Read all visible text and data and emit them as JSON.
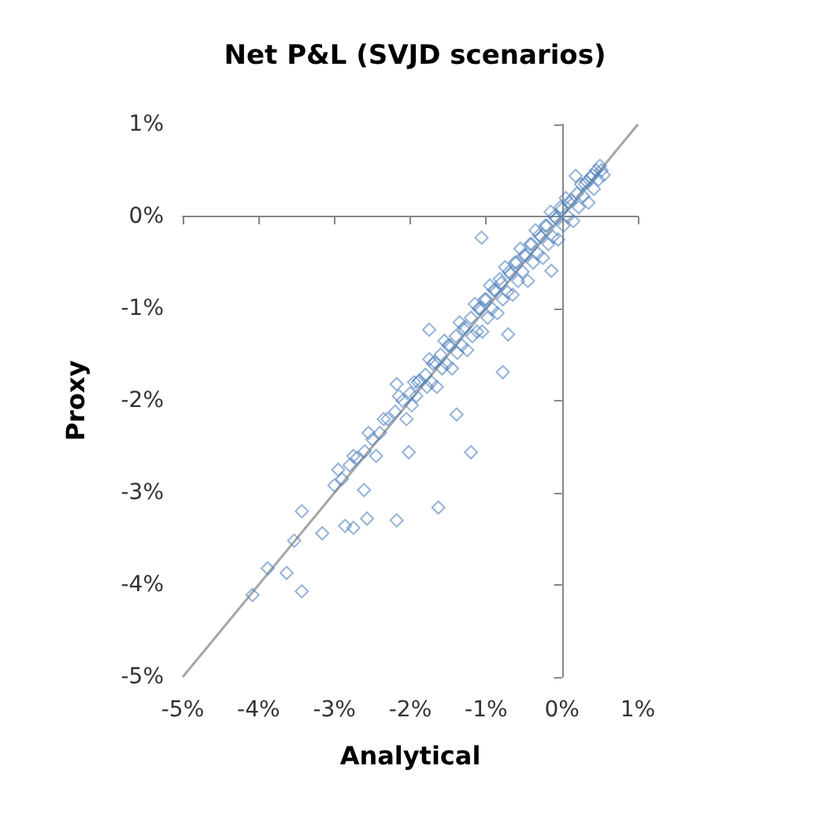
{
  "chart_data": {
    "type": "scatter",
    "title": "Net P&L (SVJD scenarios)",
    "xlabel": "Analytical",
    "ylabel": "Proxy",
    "xlim": [
      -5,
      1
    ],
    "ylim": [
      -5,
      1
    ],
    "xticks": [
      {
        "value": -5,
        "label": "-5%"
      },
      {
        "value": -4,
        "label": "-4%"
      },
      {
        "value": -3,
        "label": "-3%"
      },
      {
        "value": -2,
        "label": "-2%"
      },
      {
        "value": -1,
        "label": "-1%"
      },
      {
        "value": 0,
        "label": "0%"
      },
      {
        "value": 1,
        "label": "1%"
      }
    ],
    "yticks": [
      {
        "value": -5,
        "label": "-5%"
      },
      {
        "value": -4,
        "label": "-4%"
      },
      {
        "value": -3,
        "label": "-3%"
      },
      {
        "value": -2,
        "label": "-2%"
      },
      {
        "value": -1,
        "label": "-1%"
      },
      {
        "value": 0,
        "label": "0%"
      },
      {
        "value": 1,
        "label": "1%"
      }
    ],
    "marker": "diamond",
    "series": [
      {
        "color": "#4f81bd",
        "x": [
          -1.98,
          -1.88,
          -1.78,
          -1.68,
          -1.58,
          -1.48,
          -1.38,
          -1.28,
          -1.18,
          -1.08,
          -0.98,
          -0.88,
          -0.78,
          -0.68,
          -0.58,
          -0.48,
          -0.38,
          -0.28,
          -0.18,
          -0.08,
          0.02,
          0.12,
          0.22,
          0.32,
          0.42,
          0.52,
          -1.92,
          -1.72,
          -1.52,
          -1.32,
          -1.12,
          -0.92,
          -0.72,
          -0.52,
          -0.32,
          -0.12,
          0.08,
          0.28,
          0.48,
          -1.02,
          -0.82,
          -0.62,
          -0.42,
          -0.22,
          -0.02,
          0.38,
          -4.08,
          -3.43,
          -3.63,
          -3.88,
          -3.53,
          -3.16,
          -3.43,
          -2.86,
          -2.57,
          -2.18,
          -1.63,
          -2.75,
          -2.61,
          -1.2,
          -0.78,
          -1.39,
          -2.02,
          -2.18,
          -1.06,
          0.18,
          -1.75,
          -0.71,
          -0.14,
          -3.0,
          -2.9,
          -2.8,
          -2.7,
          -2.6,
          -2.5,
          -2.4,
          -2.3,
          -2.2,
          -2.1,
          -2.0,
          -1.9,
          -1.8,
          -1.7,
          -1.6,
          -1.5,
          -1.4,
          -1.3,
          -1.2,
          -1.1,
          -1.0,
          -0.9,
          -0.8,
          -0.7,
          -0.6,
          -0.5,
          -0.4,
          -0.3,
          -0.2,
          -0.1,
          0.0,
          0.1,
          0.2,
          0.3,
          0.4,
          0.5,
          -2.95,
          -2.75,
          -2.55,
          -2.35,
          -2.15,
          -1.95,
          -1.75,
          -1.55,
          -1.35,
          -1.15,
          -0.95,
          -0.75,
          -0.55,
          -0.35,
          -0.15,
          0.05,
          0.25,
          0.45,
          -2.45,
          -2.05,
          -1.65,
          -1.45,
          -1.25,
          -1.05,
          -0.85,
          -0.65,
          -0.45,
          -0.25,
          -0.05,
          0.15,
          0.35,
          0.55
        ],
        "values": [
          -2.05,
          -1.78,
          -1.85,
          -1.58,
          -1.65,
          -1.4,
          -1.48,
          -1.2,
          -1.3,
          -1.0,
          -1.1,
          -0.8,
          -0.9,
          -0.62,
          -0.7,
          -0.42,
          -0.5,
          -0.22,
          -0.3,
          -0.02,
          -0.1,
          0.18,
          0.1,
          0.38,
          0.3,
          0.5,
          -1.95,
          -1.8,
          -1.6,
          -1.4,
          -1.25,
          -1.0,
          -0.82,
          -0.6,
          -0.4,
          -0.22,
          0.0,
          0.22,
          0.4,
          -0.9,
          -0.68,
          -0.5,
          -0.3,
          -0.1,
          0.1,
          0.42,
          -4.11,
          -4.07,
          -3.87,
          -3.82,
          -3.52,
          -3.44,
          -3.2,
          -3.36,
          -3.28,
          -3.3,
          -3.16,
          -3.38,
          -2.97,
          -2.56,
          -1.69,
          -2.15,
          -2.56,
          -1.82,
          -0.23,
          0.44,
          -1.23,
          -1.28,
          -0.59,
          -2.92,
          -2.85,
          -2.7,
          -2.62,
          -2.55,
          -2.42,
          -2.35,
          -2.2,
          -2.12,
          -2.0,
          -1.92,
          -1.8,
          -1.72,
          -1.6,
          -1.5,
          -1.4,
          -1.3,
          -1.22,
          -1.1,
          -1.0,
          -0.9,
          -0.8,
          -0.72,
          -0.6,
          -0.5,
          -0.42,
          -0.3,
          -0.2,
          -0.1,
          0.0,
          0.08,
          0.15,
          0.25,
          0.35,
          0.45,
          0.55,
          -2.75,
          -2.6,
          -2.35,
          -2.2,
          -1.95,
          -1.8,
          -1.55,
          -1.35,
          -1.15,
          -0.95,
          -0.75,
          -0.55,
          -0.35,
          -0.15,
          0.05,
          0.2,
          0.35,
          0.5,
          -2.6,
          -2.2,
          -1.85,
          -1.65,
          -1.45,
          -1.25,
          -1.05,
          -0.85,
          -0.7,
          -0.45,
          -0.25,
          -0.05,
          0.15,
          0.45
        ]
      },
      {
        "type": "line",
        "color": "#a6a6a6",
        "x": [
          -5,
          1
        ],
        "values": [
          -5,
          1
        ],
        "marker": "none"
      }
    ]
  }
}
